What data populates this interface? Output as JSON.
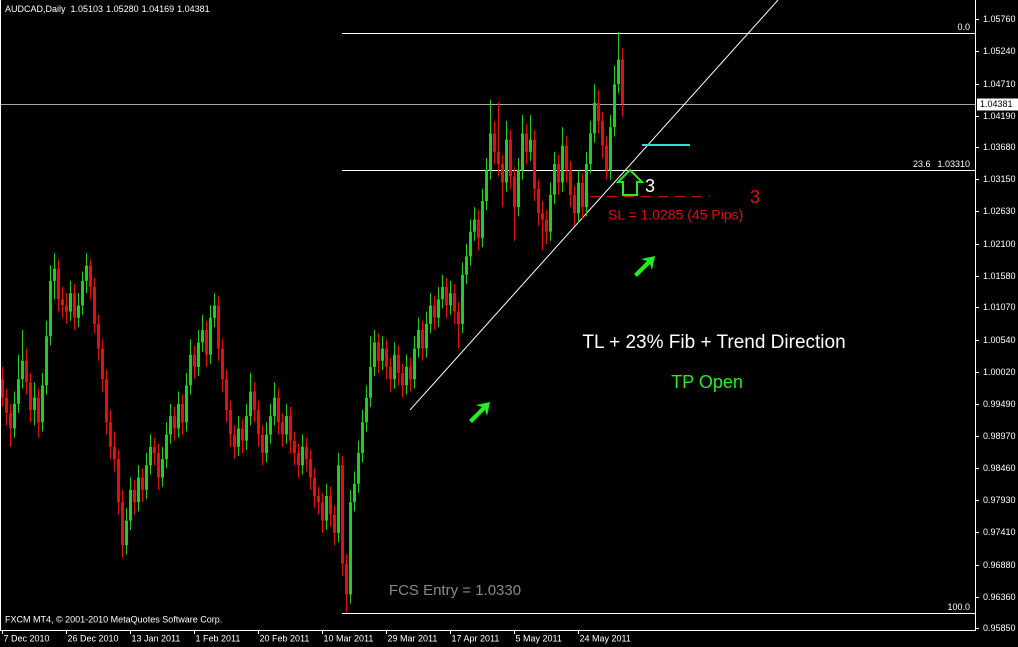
{
  "chart_data": {
    "type": "candlestick",
    "symbol": "AUDCAD,Daily",
    "last_ohlc": [
      "1.05103",
      "1.05280",
      "1.04169",
      "1.04381"
    ],
    "copyright": "FXCM MT4, © 2001-2010 MetaQuotes Software Corp.",
    "up_color": "#22cc22",
    "down_color": "#e01010",
    "ylim": [
      0.9582,
      1.0607
    ],
    "yticks": [
      {
        "value": 1.0576,
        "label": "1.05760"
      },
      {
        "value": 1.0524,
        "label": "1.05240"
      },
      {
        "value": 1.0471,
        "label": "1.04710"
      },
      {
        "value": 1.0419,
        "label": "1.04190"
      },
      {
        "value": 1.0368,
        "label": "1.03680"
      },
      {
        "value": 1.0315,
        "label": "1.03150"
      },
      {
        "value": 1.0263,
        "label": "1.02630"
      },
      {
        "value": 1.021,
        "label": "1.02100"
      },
      {
        "value": 1.0158,
        "label": "1.01580"
      },
      {
        "value": 1.0107,
        "label": "1.01070"
      },
      {
        "value": 1.0054,
        "label": "1.00540"
      },
      {
        "value": 1.0002,
        "label": "1.00020"
      },
      {
        "value": 0.9949,
        "label": "0.99490"
      },
      {
        "value": 0.9897,
        "label": "0.98970"
      },
      {
        "value": 0.9846,
        "label": "0.98460"
      },
      {
        "value": 0.9793,
        "label": "0.97930"
      },
      {
        "value": 0.9741,
        "label": "0.97410"
      },
      {
        "value": 0.9688,
        "label": "0.96880"
      },
      {
        "value": 0.9636,
        "label": "0.96360"
      },
      {
        "value": 0.9585,
        "label": "0.95850"
      }
    ],
    "xticks": [
      {
        "value": 0,
        "label": "7 Dec 2010"
      },
      {
        "value": 16,
        "label": "26 Dec 2010"
      },
      {
        "value": 32,
        "label": "13 Jan 2011"
      },
      {
        "value": 48,
        "label": "1 Feb 2011"
      },
      {
        "value": 64,
        "label": "20 Feb 2011"
      },
      {
        "value": 80,
        "label": "10 Mar 2011"
      },
      {
        "value": 96,
        "label": "29 Mar 2011"
      },
      {
        "value": 112,
        "label": "17 Apr 2011"
      },
      {
        "value": 128,
        "label": "5 May 2011"
      },
      {
        "value": 144,
        "label": "24 May 2011"
      }
    ],
    "open": [
      0.999,
      0.996,
      0.9935,
      0.991,
      0.995,
      0.999,
      1.002,
      0.9985,
      0.994,
      0.996,
      0.992,
      0.998,
      1.006,
      1.015,
      1.017,
      1.012,
      1.011,
      1.01,
      1.013,
      1.009,
      1.011,
      1.015,
      1.0175,
      1.014,
      1.008,
      1.004,
      0.999,
      0.992,
      0.988,
      0.986,
      0.979,
      0.972,
      0.976,
      0.981,
      0.979,
      0.983,
      0.981,
      0.985,
      0.988,
      0.987,
      0.983,
      0.986,
      0.99,
      0.993,
      0.991,
      0.995,
      0.992,
      0.998,
      1.003,
      1.001,
      1.005,
      1.007,
      1.003,
      1.009,
      1.011,
      1.004,
      0.999,
      0.994,
      0.99,
      0.988,
      0.991,
      0.989,
      0.993,
      0.997,
      0.994,
      0.99,
      0.987,
      0.99,
      0.993,
      0.996,
      0.992,
      0.99,
      0.993,
      0.989,
      0.987,
      0.985,
      0.988,
      0.986,
      0.983,
      0.98,
      0.979,
      0.976,
      0.98,
      0.977,
      0.974,
      0.985,
      0.969,
      0.964,
      0.979,
      0.982,
      0.987,
      0.992,
      0.996,
      1.001,
      1.005,
      1.002,
      1.004,
      1.001,
      0.999,
      1.003,
      1.0,
      0.998,
      1.001,
      0.999,
      1.004,
      1.007,
      1.004,
      1.008,
      1.011,
      1.009,
      1.012,
      1.014,
      1.011,
      1.013,
      1.01,
      1.008,
      1.016,
      1.019,
      1.023,
      1.025,
      1.022,
      1.028,
      1.033,
      1.039,
      1.036,
      1.034,
      1.031,
      1.038,
      1.032,
      1.027,
      1.033,
      1.039,
      1.036,
      1.038,
      1.03,
      1.026,
      1.025,
      1.023,
      1.029,
      1.034,
      1.031,
      1.037,
      1.033,
      1.029,
      1.026,
      1.031,
      1.027,
      1.034,
      1.039,
      1.044,
      1.041,
      1.037,
      1.033,
      1.04,
      1.047,
      1.05103
    ],
    "high": [
      1.001,
      0.9975,
      0.995,
      0.997,
      1.003,
      1.007,
      1.004,
      1.0,
      0.9985,
      0.9975,
      1.0,
      1.0085,
      1.0175,
      1.0195,
      1.0185,
      1.014,
      1.013,
      1.015,
      1.0145,
      1.013,
      1.0165,
      1.0195,
      1.0185,
      1.0155,
      1.0095,
      1.0055,
      1.0005,
      0.994,
      0.9905,
      0.9875,
      0.981,
      0.978,
      0.983,
      0.9825,
      0.985,
      0.9845,
      0.987,
      0.99,
      0.9895,
      0.9885,
      0.988,
      0.992,
      0.995,
      0.9945,
      0.997,
      0.9965,
      1.0,
      1.0055,
      1.0045,
      1.007,
      1.0095,
      1.0085,
      1.011,
      1.013,
      1.0125,
      1.0055,
      1.0005,
      0.9955,
      0.9915,
      0.993,
      0.9925,
      0.995,
      1.0,
      0.9985,
      0.9955,
      0.9915,
      0.992,
      0.995,
      0.9985,
      0.9975,
      0.9935,
      0.995,
      0.9945,
      0.9905,
      0.9885,
      0.99,
      0.9895,
      0.9875,
      0.9845,
      0.9815,
      0.9805,
      0.982,
      0.9815,
      0.9785,
      0.987,
      0.9865,
      0.9705,
      0.981,
      0.984,
      0.989,
      0.994,
      0.998,
      1.006,
      1.007,
      1.0065,
      1.006,
      1.0055,
      1.0025,
      1.005,
      1.0045,
      1.0015,
      1.003,
      1.0025,
      1.006,
      1.009,
      1.0085,
      1.01,
      1.013,
      1.0125,
      1.014,
      1.016,
      1.0155,
      1.015,
      1.0145,
      1.0115,
      1.018,
      1.021,
      1.025,
      1.027,
      1.0265,
      1.03,
      1.035,
      1.0445,
      1.041,
      1.044,
      1.0355,
      1.041,
      1.0395,
      1.0335,
      1.035,
      1.042,
      1.0405,
      1.042,
      1.0395,
      1.0315,
      1.028,
      1.0265,
      1.031,
      1.036,
      1.0355,
      1.04,
      1.0385,
      1.0345,
      1.0305,
      1.033,
      1.0325,
      1.036,
      1.041,
      1.047,
      1.046,
      1.0425,
      1.0385,
      1.042,
      1.05,
      1.0555,
      1.0528
    ],
    "low": [
      0.9945,
      0.9915,
      0.988,
      0.9895,
      0.9935,
      0.9975,
      0.9965,
      0.992,
      0.9915,
      0.9895,
      0.9905,
      0.9965,
      1.0045,
      1.012,
      1.01,
      1.009,
      1.008,
      1.0085,
      1.007,
      1.0075,
      1.0095,
      1.013,
      1.012,
      1.0065,
      1.002,
      0.997,
      0.99,
      0.986,
      0.984,
      0.977,
      0.97,
      0.9705,
      0.9745,
      0.977,
      0.9775,
      0.979,
      0.9795,
      0.9835,
      0.985,
      0.981,
      0.9815,
      0.9845,
      0.9885,
      0.989,
      0.9895,
      0.99,
      0.9905,
      0.9965,
      0.999,
      0.9995,
      1.0035,
      1.001,
      1.0015,
      1.0075,
      1.002,
      0.997,
      0.992,
      0.988,
      0.986,
      0.9865,
      0.987,
      0.9875,
      0.9915,
      0.992,
      0.988,
      0.985,
      0.9855,
      0.9885,
      0.9915,
      0.99,
      0.988,
      0.9885,
      0.987,
      0.985,
      0.983,
      0.9835,
      0.984,
      0.981,
      0.978,
      0.977,
      0.974,
      0.9745,
      0.975,
      0.972,
      0.9725,
      0.967,
      0.961,
      0.9625,
      0.9775,
      0.9805,
      0.9855,
      0.9905,
      0.9945,
      0.9995,
      1.0,
      1.0005,
      0.999,
      0.997,
      0.9975,
      0.998,
      0.996,
      0.9965,
      0.997,
      0.9975,
      1.0025,
      1.002,
      1.0025,
      1.0065,
      1.007,
      1.0075,
      1.0105,
      1.009,
      1.0095,
      1.008,
      1.004,
      1.0065,
      1.0145,
      1.0175,
      1.0215,
      1.02,
      1.0205,
      1.0265,
      1.0315,
      1.034,
      1.032,
      1.027,
      1.0295,
      1.03,
      1.0215,
      1.0255,
      1.0315,
      1.034,
      1.0345,
      1.028,
      1.024,
      1.02,
      1.021,
      1.0215,
      1.0275,
      1.029,
      1.0295,
      1.031,
      1.027,
      1.024,
      1.0245,
      1.025,
      1.0255,
      1.0325,
      1.0375,
      1.039,
      1.035,
      1.0315,
      1.0315,
      1.0385,
      1.0455,
      1.04169
    ],
    "close": [
      0.996,
      0.9935,
      0.991,
      0.995,
      0.999,
      1.002,
      0.9985,
      0.994,
      0.996,
      0.992,
      0.998,
      1.006,
      1.015,
      1.017,
      1.012,
      1.011,
      1.01,
      1.013,
      1.009,
      1.011,
      1.015,
      1.0175,
      1.014,
      1.008,
      1.004,
      0.999,
      0.992,
      0.988,
      0.986,
      0.979,
      0.972,
      0.976,
      0.981,
      0.979,
      0.983,
      0.981,
      0.985,
      0.988,
      0.987,
      0.983,
      0.986,
      0.99,
      0.993,
      0.991,
      0.995,
      0.992,
      0.998,
      1.003,
      1.001,
      1.005,
      1.007,
      1.003,
      1.009,
      1.011,
      1.004,
      0.999,
      0.994,
      0.99,
      0.988,
      0.991,
      0.989,
      0.993,
      0.997,
      0.994,
      0.99,
      0.987,
      0.99,
      0.993,
      0.996,
      0.992,
      0.99,
      0.993,
      0.989,
      0.987,
      0.985,
      0.988,
      0.986,
      0.983,
      0.98,
      0.979,
      0.976,
      0.98,
      0.977,
      0.974,
      0.985,
      0.969,
      0.964,
      0.979,
      0.982,
      0.987,
      0.992,
      0.996,
      1.001,
      1.005,
      1.002,
      1.004,
      1.001,
      0.999,
      1.003,
      1.0,
      0.998,
      1.001,
      0.999,
      1.004,
      1.007,
      1.004,
      1.008,
      1.011,
      1.009,
      1.012,
      1.014,
      1.011,
      1.013,
      1.01,
      1.008,
      1.016,
      1.019,
      1.023,
      1.025,
      1.022,
      1.028,
      1.033,
      1.039,
      1.036,
      1.034,
      1.031,
      1.038,
      1.032,
      1.027,
      1.033,
      1.039,
      1.036,
      1.038,
      1.03,
      1.026,
      1.025,
      1.023,
      1.029,
      1.034,
      1.031,
      1.037,
      1.033,
      1.029,
      1.026,
      1.031,
      1.027,
      1.034,
      1.039,
      1.044,
      1.041,
      1.037,
      1.033,
      1.04,
      1.047,
      1.051,
      1.04381
    ],
    "last_price": {
      "value": 1.04381,
      "label": "1.04381"
    },
    "fib_start": 85,
    "fib_levels": [
      {
        "label": "0.0",
        "price": 1.0553
      },
      {
        "label": "23.6",
        "price": {
          "value": 1.0331,
          "label": "1.03310"
        }
      },
      {
        "label": "100.0",
        "price": 0.9609
      }
    ],
    "trendline": {
      "x": [
        102,
        194
      ],
      "y": [
        0.994,
        1.0607
      ],
      "color": "#ffffff"
    },
    "target_line": {
      "x": [
        160,
        172
      ],
      "y": 1.0371,
      "color": "#33dddd"
    },
    "stop_line": {
      "x": [
        147,
        177
      ],
      "y": 1.0287,
      "color": "#e01010"
    },
    "annotations": {
      "entry_count": "3",
      "stop_count": "3",
      "stop_loss": "SL = 1.0285 (45 Pips)",
      "setup": "TL + 23% Fib + Trend Direction",
      "take_profit": "TP Open",
      "entry": "FCS Entry = 1.0330"
    }
  }
}
